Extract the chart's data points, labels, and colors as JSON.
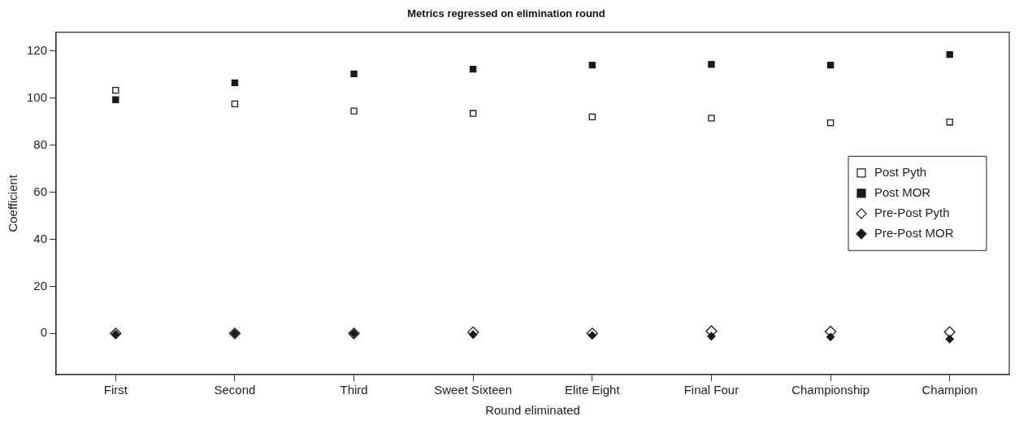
{
  "chart_data": {
    "type": "scatter",
    "title": "Metrics regressed on elimination round",
    "xlabel": "Round eliminated",
    "ylabel": "Coefficient",
    "categories": [
      "First",
      "Second",
      "Third",
      "Sweet Sixteen",
      "Elite Eight",
      "Final Four",
      "Championship",
      "Champion"
    ],
    "series": [
      {
        "name": "Post Pyth",
        "color": "#ffffff",
        "marker": "square",
        "values": [
          103.3,
          97.5,
          94.5,
          93.5,
          92,
          91.5,
          89.5,
          89.8
        ]
      },
      {
        "name": "Post MOR",
        "color": "#1a1a1a",
        "marker": "square",
        "values": [
          99.3,
          106.5,
          110.3,
          112.3,
          114,
          114.3,
          114,
          118.5
        ]
      },
      {
        "name": "Pre-Post Pyth",
        "color": "#ffffff",
        "marker": "diamond",
        "values": [
          0,
          0,
          0,
          0.5,
          0,
          1,
          0.8,
          0.6
        ]
      },
      {
        "name": "Pre-Post MOR",
        "color": "#1a1a1a",
        "marker": "diamond",
        "values": [
          -0.3,
          0,
          0,
          -0.5,
          -0.8,
          -1.2,
          -1.5,
          -2.4
        ]
      }
    ],
    "ylim": [
      -17.5,
      128
    ],
    "yticks": [
      0,
      20,
      40,
      60,
      80,
      100,
      120
    ],
    "grid": false,
    "legend": "right"
  }
}
